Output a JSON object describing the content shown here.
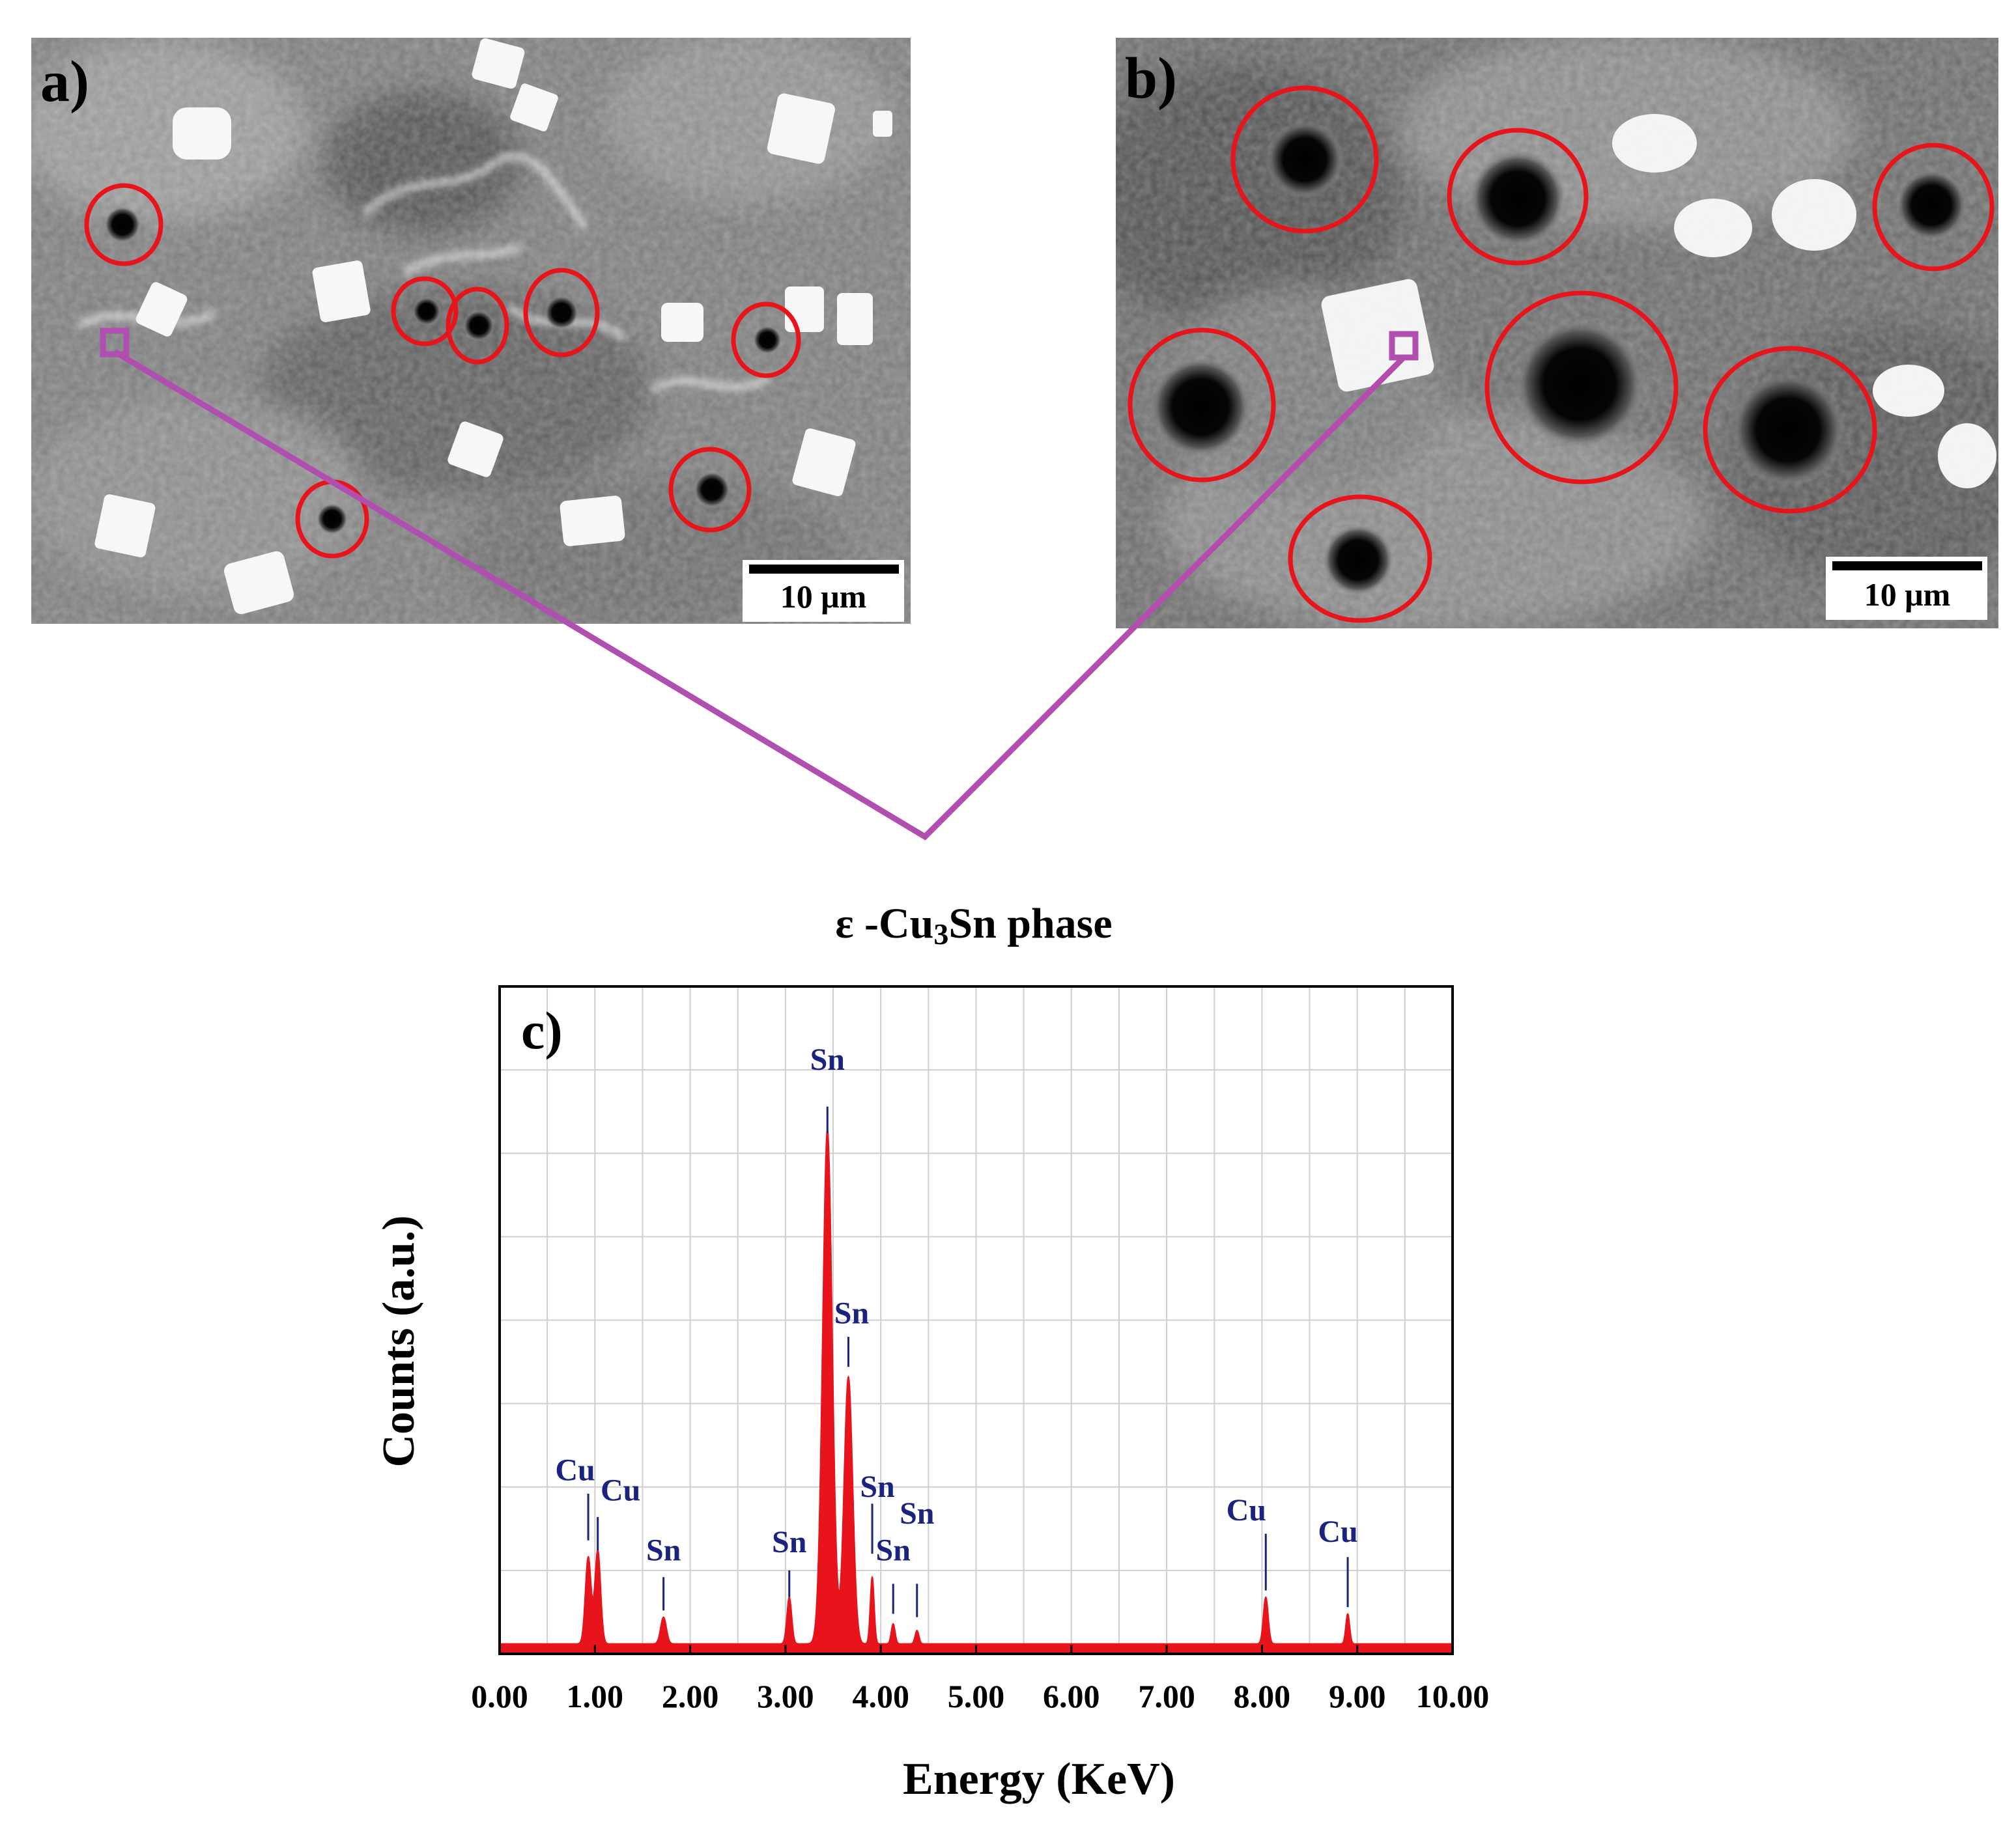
{
  "panel_a": {
    "label": "a)",
    "scale_bar_label": "10 μm"
  },
  "panel_b": {
    "label": "b)",
    "scale_bar_label": "10 μm"
  },
  "phase_caption": {
    "prefix": "ε -Cu",
    "subscript": "3",
    "suffix": "Sn phase"
  },
  "colors": {
    "pore_circle": "#e8141b",
    "leader_line": "#b04fb0",
    "spectrum": "#e8141b",
    "peak_label": "#1a237e",
    "grid": "#cfcfcf"
  },
  "chart_data": {
    "type": "line",
    "panel_label": "c)",
    "xlabel": "Energy (KeV)",
    "ylabel": "Counts (a.u.)",
    "xlim": [
      0,
      10
    ],
    "ylim": [
      0,
      100
    ],
    "grid": true,
    "x_ticks": [
      "0.00",
      "1.00",
      "2.00",
      "3.00",
      "4.00",
      "5.00",
      "6.00",
      "7.00",
      "8.00",
      "9.00",
      "10.00"
    ],
    "baseline": 1.5,
    "peaks": [
      {
        "x": 0.93,
        "height": 13,
        "width": 0.03
      },
      {
        "x": 1.03,
        "height": 14,
        "width": 0.03
      },
      {
        "x": 1.72,
        "height": 4,
        "width": 0.03
      },
      {
        "x": 3.04,
        "height": 7,
        "width": 0.025
      },
      {
        "x": 3.44,
        "height": 77,
        "width": 0.05
      },
      {
        "x": 3.66,
        "height": 40,
        "width": 0.045
      },
      {
        "x": 3.91,
        "height": 10,
        "width": 0.02
      },
      {
        "x": 4.13,
        "height": 3,
        "width": 0.02
      },
      {
        "x": 4.38,
        "height": 2,
        "width": 0.02
      },
      {
        "x": 8.04,
        "height": 7,
        "width": 0.025
      },
      {
        "x": 8.9,
        "height": 4.5,
        "width": 0.02
      }
    ],
    "peak_labels": [
      {
        "text": "Cu",
        "x": 0.93,
        "line_top": 24,
        "line_bottom": 17,
        "label_y": 26,
        "label_dx": -20
      },
      {
        "text": "Cu",
        "x": 1.03,
        "line_top": 20.5,
        "line_bottom": 15.5,
        "label_y": 23,
        "label_dx": 35
      },
      {
        "text": "Sn",
        "x": 1.72,
        "line_top": 11.5,
        "line_bottom": 6.5,
        "label_y": 14,
        "label_dx": 0
      },
      {
        "text": "Sn",
        "x": 3.04,
        "line_top": 12.5,
        "line_bottom": 8.5,
        "label_y": 15.2,
        "label_dx": 0
      },
      {
        "text": "Sn",
        "x": 3.44,
        "line_top": 82,
        "line_bottom": 78,
        "label_y": 87.5,
        "label_dx": 0
      },
      {
        "text": "Sn",
        "x": 3.66,
        "line_top": 47.5,
        "line_bottom": 43,
        "label_y": 49.5,
        "label_dx": 5
      },
      {
        "text": "Sn",
        "x": 3.91,
        "line_top": 22.5,
        "line_bottom": 15,
        "label_y": 23.5,
        "label_dx": 8
      },
      {
        "text": "Sn",
        "x": 4.13,
        "line_top": 10.5,
        "line_bottom": 6,
        "label_y": 14,
        "label_dx": 0
      },
      {
        "text": "Sn",
        "x": 4.38,
        "line_top": 10.5,
        "line_bottom": 5.5,
        "label_y": 19.5,
        "label_dx": 0
      },
      {
        "text": "Cu",
        "x": 8.04,
        "line_top": 18,
        "line_bottom": 9.5,
        "label_y": 20,
        "label_dx": -30
      },
      {
        "text": "Cu",
        "x": 8.9,
        "line_top": 14.5,
        "line_bottom": 7,
        "label_y": 16.8,
        "label_dx": -15
      }
    ]
  }
}
